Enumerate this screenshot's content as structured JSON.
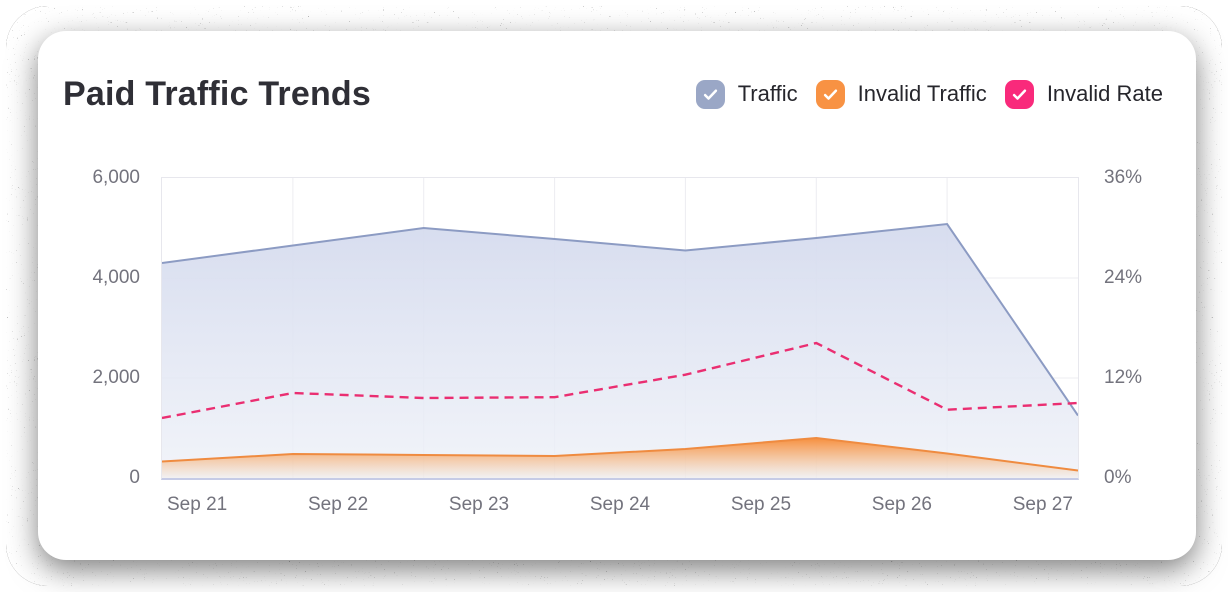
{
  "card": {
    "title": "Paid Traffic Trends"
  },
  "legend": [
    {
      "label": "Traffic",
      "checked": true,
      "color": "#9aa7c6"
    },
    {
      "label": "Invalid Traffic",
      "checked": true,
      "color": "#f89243"
    },
    {
      "label": "Invalid Rate",
      "checked": true,
      "color": "#f92a7b"
    }
  ],
  "chart_data": {
    "type": "area",
    "title": "Paid Traffic Trends",
    "categories": [
      "Sep 21",
      "Sep 22",
      "Sep 23",
      "Sep 24",
      "Sep 25",
      "Sep 26",
      "Sep 27"
    ],
    "left_axis": {
      "min": 0,
      "max": 6000,
      "ticks": [
        "6,000",
        "4,000",
        "2,000",
        "0"
      ]
    },
    "right_axis": {
      "min": 0,
      "max": 36,
      "ticks": [
        "36%",
        "24%",
        "12%",
        "0%"
      ]
    },
    "grid": true,
    "legend_position": "top-right",
    "layout_note": "Each series is drawn with 8 evenly spaced points spanning the full plot width; interior vertical gridlines fall on the points and the 7 date labels sit between them.",
    "series": [
      {
        "name": "Traffic",
        "axis": "left",
        "style": "area",
        "line_color": "#8c9bc3",
        "values": [
          4300,
          4650,
          5000,
          4780,
          4550,
          4800,
          5080,
          1250
        ]
      },
      {
        "name": "Invalid Traffic",
        "axis": "left",
        "style": "area",
        "line_color": "#ef8b40",
        "values": [
          330,
          480,
          460,
          440,
          580,
          800,
          490,
          150
        ]
      },
      {
        "name": "Invalid Rate",
        "axis": "right",
        "style": "dashed_line",
        "line_color": "#ea2e71",
        "values": [
          7.2,
          10.2,
          9.6,
          9.7,
          12.4,
          16.2,
          8.2,
          9.0
        ]
      }
    ]
  }
}
